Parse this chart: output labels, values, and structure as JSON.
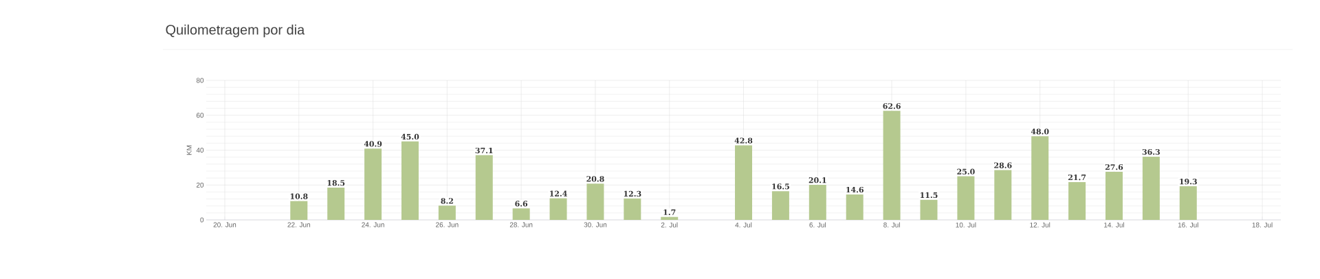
{
  "chart_data": {
    "type": "bar",
    "title": "Quilometragem por dia",
    "ylabel": "KM",
    "categories": [
      "20. Jun",
      null,
      "22. Jun",
      null,
      "24. Jun",
      null,
      "26. Jun",
      null,
      "28. Jun",
      null,
      "30. Jun",
      null,
      "2. Jul",
      null,
      "4. Jul",
      null,
      "6. Jul",
      null,
      "8. Jul",
      null,
      "10. Jul",
      null,
      "12. Jul",
      null,
      "14. Jul",
      null,
      "16. Jul",
      null,
      "18. Jul"
    ],
    "values": [
      null,
      null,
      10.8,
      18.5,
      40.9,
      45.0,
      8.2,
      37.1,
      6.6,
      12.4,
      20.8,
      12.3,
      1.7,
      null,
      42.8,
      16.5,
      20.1,
      14.6,
      62.6,
      11.5,
      25.0,
      28.6,
      48.0,
      21.7,
      27.6,
      36.3,
      19.3,
      null,
      null
    ],
    "value_labels": [
      null,
      null,
      "10.8",
      "18.5",
      "40.9",
      "45.0",
      "8.2",
      "37.1",
      "6.6",
      "12.4",
      "20.8",
      "12.3",
      "1.7",
      null,
      "42.8",
      "16.5",
      "20.1",
      "14.6",
      "62.6",
      "11.5",
      "25.0",
      "28.6",
      "48.0",
      "21.7",
      "27.6",
      "36.3",
      "19.3",
      null,
      null
    ],
    "color": "#b5c98f",
    "ylim": [
      0,
      80
    ],
    "yticks": [
      0,
      20,
      40,
      60,
      80
    ],
    "grid": true
  }
}
